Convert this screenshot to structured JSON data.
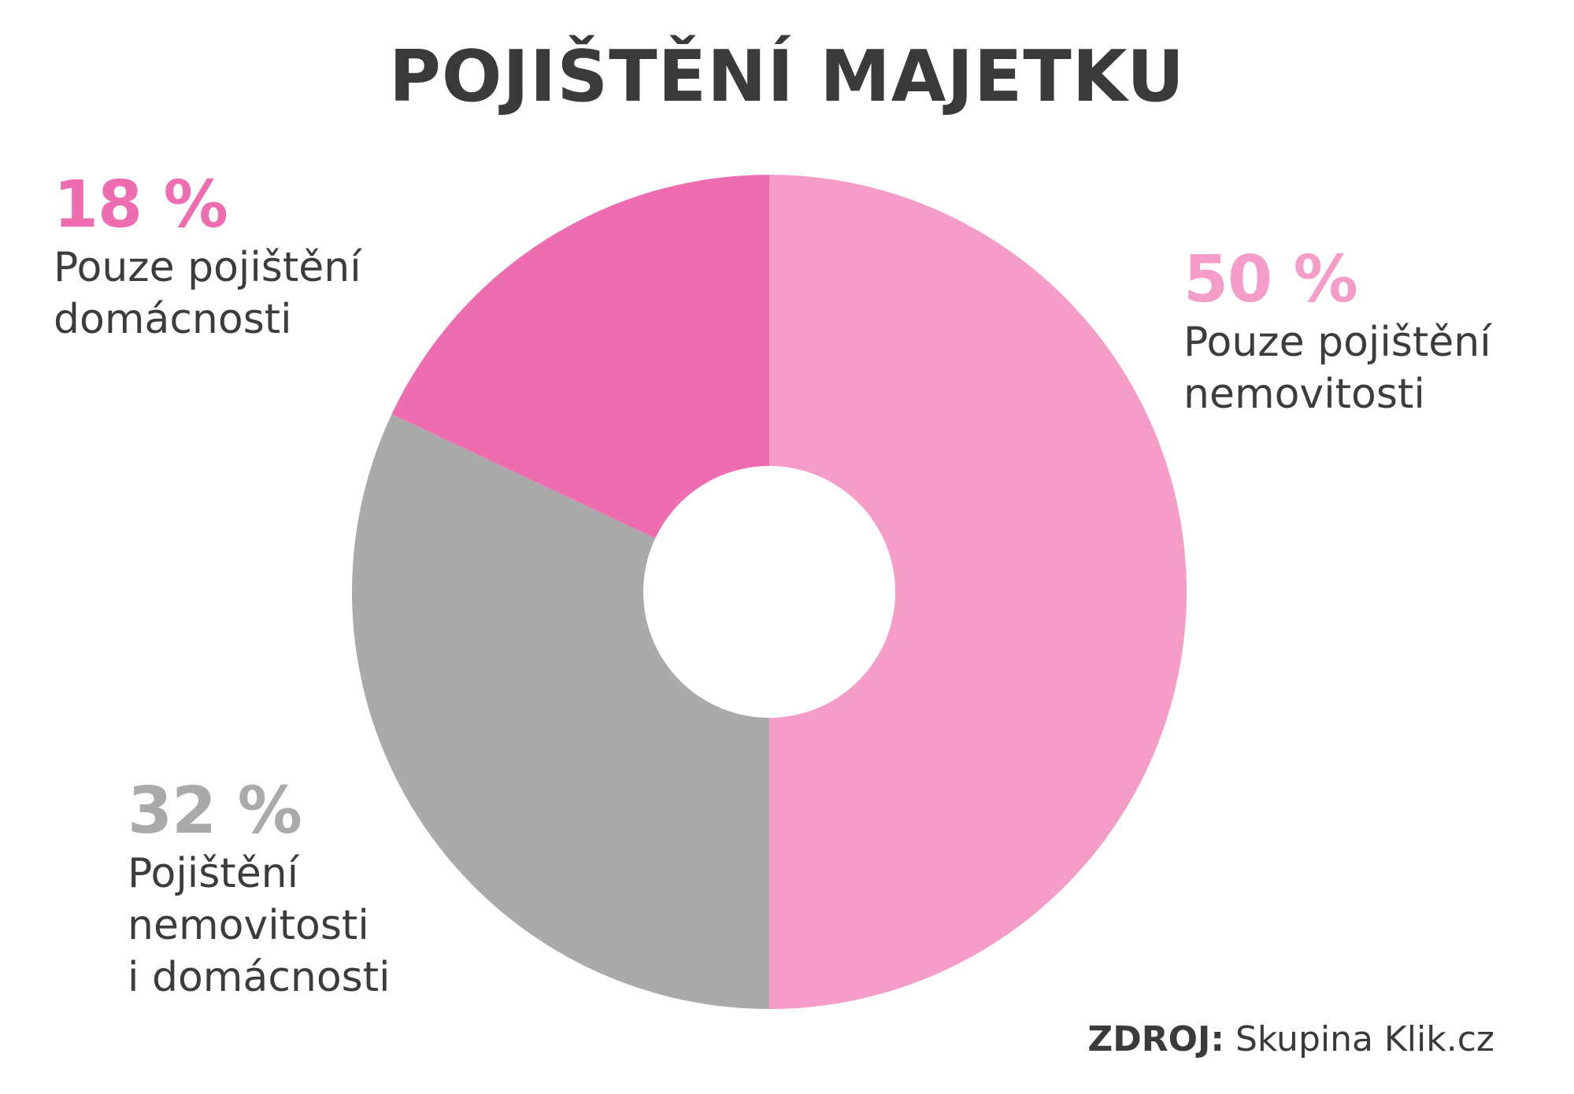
{
  "chart_data": {
    "type": "pie",
    "variant": "donut",
    "title": "POJIŠTĚNÍ MAJETKU",
    "slices": [
      {
        "value": 50,
        "label": "50 %",
        "description": "Pouze pojištění\nnemovitosti",
        "color": "#f59cc9"
      },
      {
        "value": 32,
        "label": "32 %",
        "description": "Pojištění\nnemovitosti\ni domácnosti",
        "color": "#aaaaaa"
      },
      {
        "value": 18,
        "label": "18 %",
        "description": "Pouze pojištění\ndomácnosti",
        "color": "#ee6cb0"
      }
    ],
    "legend": "labels beside slices",
    "source": {
      "key": "ZDROJ:",
      "value": "Skupina Klik.cz"
    }
  },
  "colors": {
    "background": "#ffffff",
    "text": "#3a3a3a"
  }
}
